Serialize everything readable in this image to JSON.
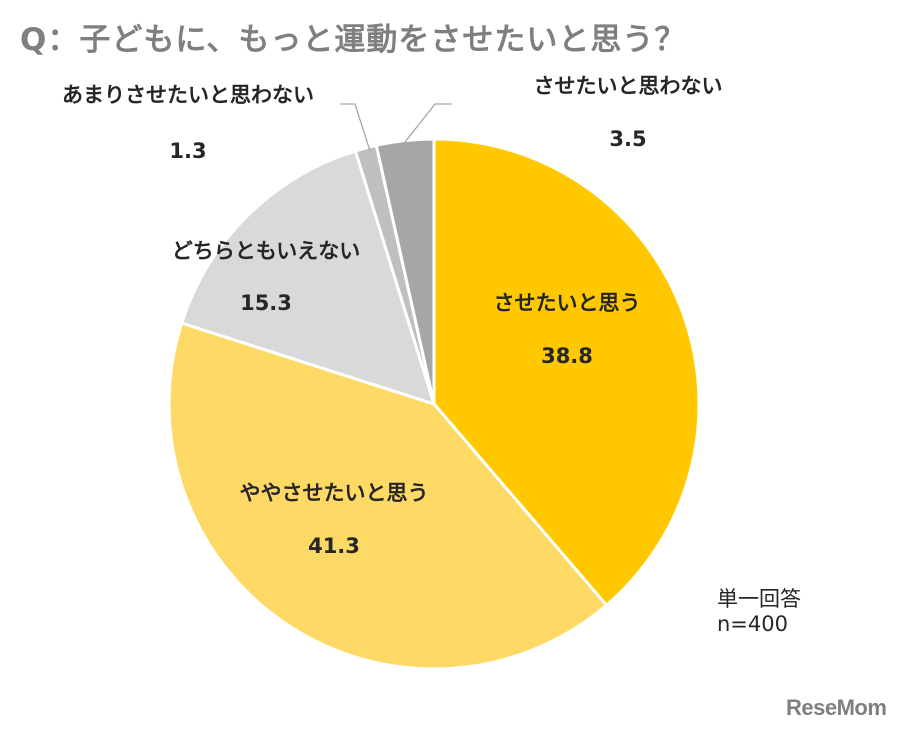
{
  "title": "Q：子どもに、もっと運動をさせたいと思う？",
  "chart_data": {
    "type": "pie",
    "title": "Q：子どもに、もっと運動をさせたいと思う？",
    "start_angle_deg": 0,
    "direction": "clockwise",
    "slices": [
      {
        "label": "させたいと思う",
        "value": 38.8,
        "color": "#FFC800"
      },
      {
        "label": "ややさせたいと思う",
        "value": 41.3,
        "color": "#FFD966"
      },
      {
        "label": "どちらともいえない",
        "value": 15.3,
        "color": "#D9D9D9"
      },
      {
        "label": "あまりさせたいと思わない",
        "value": 1.3,
        "color": "#BFBFBF"
      },
      {
        "label": "させたいと思わない",
        "value": 3.5,
        "color": "#A6A6A6"
      }
    ]
  },
  "notes": {
    "answer_type": "単一回答",
    "n": "n=400"
  },
  "logo": "ReseMom"
}
